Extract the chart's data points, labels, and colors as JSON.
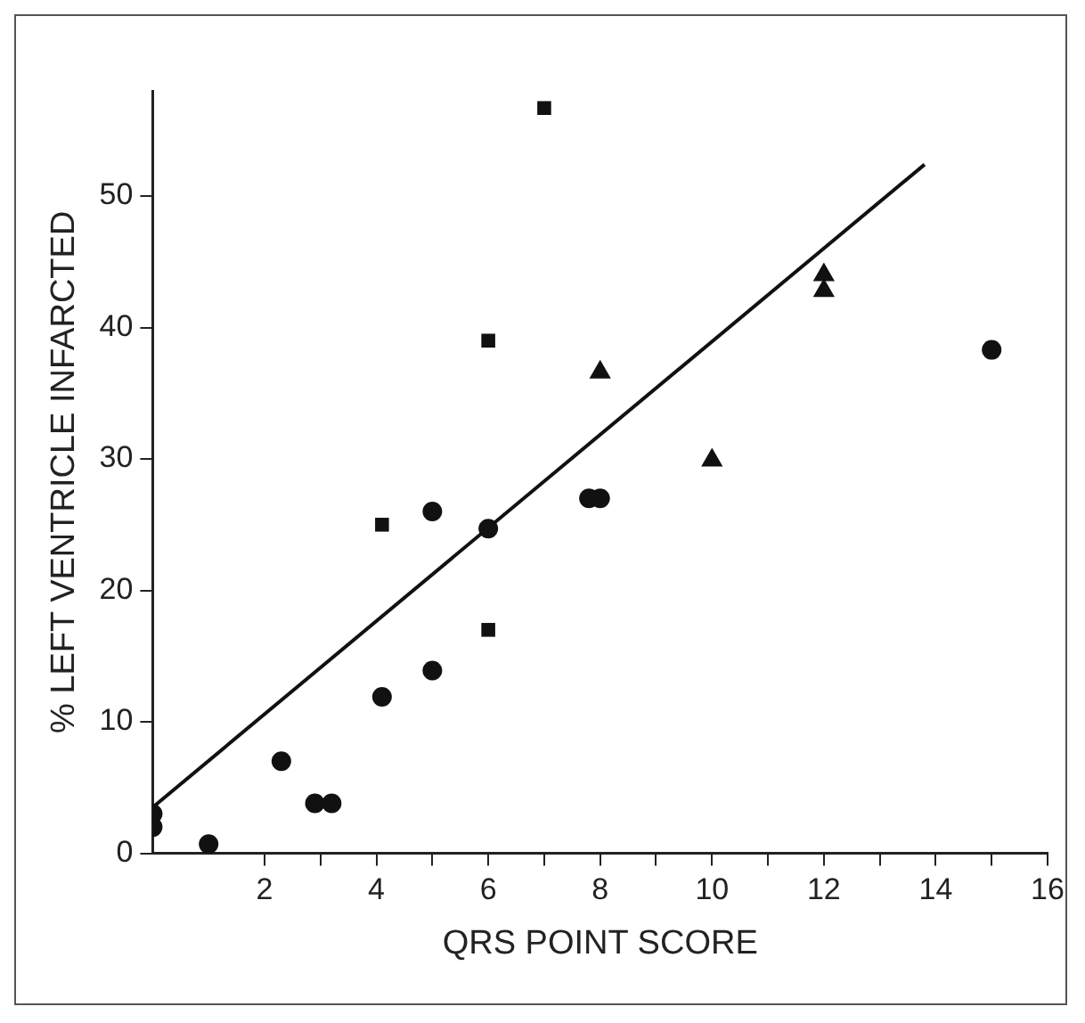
{
  "chart_data": {
    "type": "scatter",
    "xlabel": "QRS POINT SCORE",
    "ylabel": "% LEFT VENTRICLE INFARCTED",
    "xlim": [
      0,
      16
    ],
    "xticks": [
      2,
      {
        "value": 3,
        "label": null
      },
      4,
      {
        "value": 5,
        "label": null
      },
      6,
      {
        "value": 7,
        "label": null
      },
      8,
      {
        "value": 9,
        "label": null
      },
      10,
      {
        "value": 11,
        "label": null
      },
      12,
      {
        "value": 13,
        "label": null
      },
      14,
      {
        "value": 15,
        "label": null
      },
      16
    ],
    "ylim": [
      0,
      58
    ],
    "yticks": [
      0,
      10,
      20,
      30,
      40,
      50
    ],
    "grid": false,
    "legend": false,
    "series": [
      {
        "marker": "circle",
        "color": "#111111",
        "x": [
          0,
          0,
          1,
          2.3,
          2.9,
          3.2,
          4.1,
          5,
          5,
          6,
          7.8,
          8,
          15
        ],
        "values": [
          3,
          2,
          0.7,
          7,
          3.8,
          3.8,
          11.9,
          13.9,
          26,
          24.7,
          27,
          27,
          38.3
        ]
      },
      {
        "marker": "square",
        "color": "#111111",
        "x": [
          4.1,
          6,
          6,
          7
        ],
        "values": [
          25,
          39,
          17,
          56.7
        ]
      },
      {
        "marker": "triangle",
        "color": "#111111",
        "x": [
          8,
          10,
          12,
          12
        ],
        "values": [
          36.6,
          29.9,
          44,
          42.8
        ]
      },
      {
        "type": "line",
        "marker": "none",
        "line_style": "solid",
        "color": "#111111",
        "x": [
          0,
          13.8
        ],
        "values": [
          3.5,
          52.4
        ]
      }
    ]
  }
}
